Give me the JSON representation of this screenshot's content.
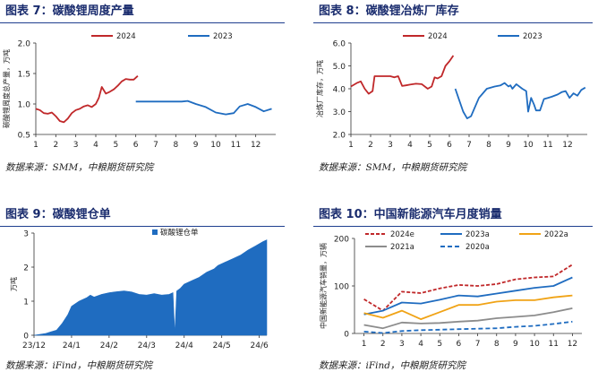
{
  "charts": [
    {
      "title": "图表 7：碳酸锂周度产量",
      "source": "数据来源：SMM，中粮期货研究院",
      "chart_data": {
        "type": "line",
        "ylabel": "碳酸锂周度总产量，万吨",
        "xlabel": "",
        "ylim": [
          0.5,
          2.0
        ],
        "yticks": [
          "0.5",
          "1.0",
          "1.5",
          "2.0"
        ],
        "xticks": [
          "1",
          "2",
          "3",
          "4",
          "5",
          "6",
          "7",
          "8",
          "9",
          "10",
          "11",
          "12"
        ],
        "grid": false,
        "legend_position": "top",
        "series": [
          {
            "name": "2024",
            "color": "#c0282a",
            "x": [
              1.0,
              1.2,
              1.4,
              1.6,
              1.8,
              2.0,
              2.2,
              2.4,
              2.6,
              2.8,
              3.0,
              3.2,
              3.4,
              3.6,
              3.8,
              4.0,
              4.15,
              4.3,
              4.5,
              4.7,
              4.9,
              5.1,
              5.3,
              5.5,
              5.7,
              5.9,
              6.1
            ],
            "y": [
              0.92,
              0.9,
              0.85,
              0.84,
              0.86,
              0.8,
              0.72,
              0.7,
              0.76,
              0.85,
              0.9,
              0.92,
              0.96,
              0.98,
              0.95,
              1.0,
              1.1,
              1.28,
              1.17,
              1.2,
              1.24,
              1.3,
              1.37,
              1.41,
              1.4,
              1.4,
              1.46
            ]
          },
          {
            "name": "2023",
            "color": "#1f6cc0",
            "x": [
              6.0,
              6.5,
              7.0,
              7.5,
              8.0,
              8.3,
              8.6,
              9.0,
              9.5,
              10.0,
              10.5,
              10.9,
              11.2,
              11.6,
              12.0,
              12.4,
              12.8
            ],
            "y": [
              1.04,
              1.04,
              1.04,
              1.04,
              1.04,
              1.04,
              1.05,
              1.0,
              0.95,
              0.86,
              0.83,
              0.85,
              0.96,
              1.0,
              0.95,
              0.88,
              0.92
            ]
          }
        ]
      }
    },
    {
      "title": "图表 8：碳酸锂冶炼厂库存",
      "source": "数据来源：SMM，中粮期货研究院",
      "chart_data": {
        "type": "line",
        "ylabel": "冶炼厂库存，万吨",
        "xlabel": "",
        "ylim": [
          2.0,
          6.0
        ],
        "yticks": [
          "2.0",
          "3.0",
          "4.0",
          "5.0",
          "6.0"
        ],
        "xticks": [
          "1",
          "2",
          "3",
          "4",
          "5",
          "6",
          "7",
          "8",
          "9",
          "10",
          "11",
          "12"
        ],
        "grid": false,
        "legend_position": "top",
        "series": [
          {
            "name": "2024",
            "color": "#c0282a",
            "x": [
              1.0,
              1.3,
              1.5,
              1.7,
              1.9,
              2.1,
              2.2,
              2.4,
              2.7,
              3.0,
              3.2,
              3.4,
              3.6,
              3.8,
              4.0,
              4.3,
              4.6,
              4.9,
              5.1,
              5.25,
              5.4,
              5.6,
              5.8,
              6.0,
              6.2
            ],
            "y": [
              4.1,
              4.25,
              4.32,
              4.0,
              3.78,
              3.9,
              4.55,
              4.55,
              4.55,
              4.55,
              4.5,
              4.55,
              4.12,
              4.15,
              4.18,
              4.22,
              4.2,
              4.0,
              4.1,
              4.5,
              4.45,
              4.55,
              5.0,
              5.2,
              5.45
            ]
          },
          {
            "name": "2023",
            "color": "#1f6cc0",
            "x": [
              6.3,
              6.5,
              6.7,
              6.9,
              7.1,
              7.3,
              7.5,
              7.7,
              7.9,
              8.1,
              8.3,
              8.6,
              8.8,
              9.0,
              9.1,
              9.2,
              9.4,
              9.7,
              9.9,
              10.0,
              10.15,
              10.3,
              10.4,
              10.6,
              10.8,
              11.0,
              11.2,
              11.5,
              11.7,
              11.9,
              12.1,
              12.3,
              12.5,
              12.7,
              12.9
            ],
            "y": [
              4.0,
              3.5,
              3.0,
              2.7,
              2.8,
              3.2,
              3.6,
              3.8,
              4.0,
              4.05,
              4.1,
              4.15,
              4.25,
              4.1,
              4.15,
              4.0,
              4.2,
              4.0,
              3.9,
              3.0,
              3.6,
              3.3,
              3.05,
              3.05,
              3.55,
              3.6,
              3.65,
              3.75,
              3.85,
              3.9,
              3.6,
              3.8,
              3.7,
              3.95,
              4.05
            ]
          }
        ]
      }
    },
    {
      "title": "图表 9：碳酸锂仓单",
      "source": "数据来源：iFind，中粮期货研究院",
      "chart_data": {
        "type": "area",
        "ylabel": "万吨",
        "xlabel": "",
        "ylim": [
          0,
          3
        ],
        "yticks": [
          "0",
          "1",
          "2",
          "3"
        ],
        "xticks": [
          "23/12",
          "24/1",
          "24/2",
          "24/3",
          "24/4",
          "24/5",
          "24/6"
        ],
        "grid": false,
        "legend_position": "top",
        "series": [
          {
            "name": "碳酸锂仓单",
            "color": "#1f6cc0",
            "x": [
              0.0,
              0.3,
              0.45,
              0.6,
              0.75,
              0.9,
              1.0,
              1.2,
              1.4,
              1.5,
              1.6,
              1.8,
              2.0,
              2.2,
              2.4,
              2.6,
              2.8,
              3.0,
              3.2,
              3.4,
              3.6,
              3.7,
              3.75,
              3.8,
              3.9,
              4.0,
              4.2,
              4.4,
              4.6,
              4.8,
              4.9,
              5.1,
              5.3,
              5.5,
              5.7,
              5.9,
              6.1,
              6.2
            ],
            "y": [
              0.0,
              0.05,
              0.1,
              0.15,
              0.35,
              0.6,
              0.85,
              1.0,
              1.1,
              1.18,
              1.12,
              1.2,
              1.25,
              1.28,
              1.3,
              1.27,
              1.2,
              1.18,
              1.22,
              1.18,
              1.2,
              1.25,
              0.05,
              1.3,
              1.38,
              1.5,
              1.6,
              1.7,
              1.85,
              1.95,
              2.05,
              2.15,
              2.25,
              2.35,
              2.5,
              2.62,
              2.75,
              2.8
            ]
          }
        ]
      }
    },
    {
      "title": "图表 10：中国新能源汽车月度销量",
      "source": "数据来源：iFind，中粮期货研究院",
      "chart_data": {
        "type": "line",
        "ylabel": "中国新能源汽车销量，万辆",
        "xlabel": "",
        "ylim": [
          0,
          200
        ],
        "yticks": [
          "0",
          "100",
          "200"
        ],
        "xticks": [
          "1",
          "2",
          "3",
          "4",
          "5",
          "6",
          "7",
          "8",
          "9",
          "10",
          "11",
          "12"
        ],
        "grid": false,
        "legend_position": "top",
        "series": [
          {
            "name": "2024e",
            "color": "#c0282a",
            "dash": "4,2",
            "values": [
              72,
              48,
              88,
              85,
              95,
              102,
              100,
              104,
              114,
              118,
              120,
              145
            ]
          },
          {
            "name": "2023a",
            "color": "#1f6cc0",
            "dash": "",
            "values": [
              40,
              48,
              65,
              63,
              71,
              80,
              78,
              84,
              90,
              96,
              100,
              118
            ]
          },
          {
            "name": "2022a",
            "color": "#f0a316",
            "dash": "",
            "values": [
              43,
              33,
              48,
              30,
              45,
              60,
              60,
              67,
              70,
              70,
              76,
              80
            ]
          },
          {
            "name": "2021a",
            "color": "#8c8c8c",
            "dash": "",
            "values": [
              18,
              11,
              23,
              21,
              22,
              25,
              27,
              32,
              35,
              38,
              45,
              53
            ]
          },
          {
            "name": "2020a",
            "color": "#1f6cc0",
            "dash": "5,3",
            "values": [
              4,
              1,
              5,
              7,
              8,
              9,
              10,
              11,
              14,
              16,
              20,
              25
            ]
          }
        ]
      }
    }
  ]
}
